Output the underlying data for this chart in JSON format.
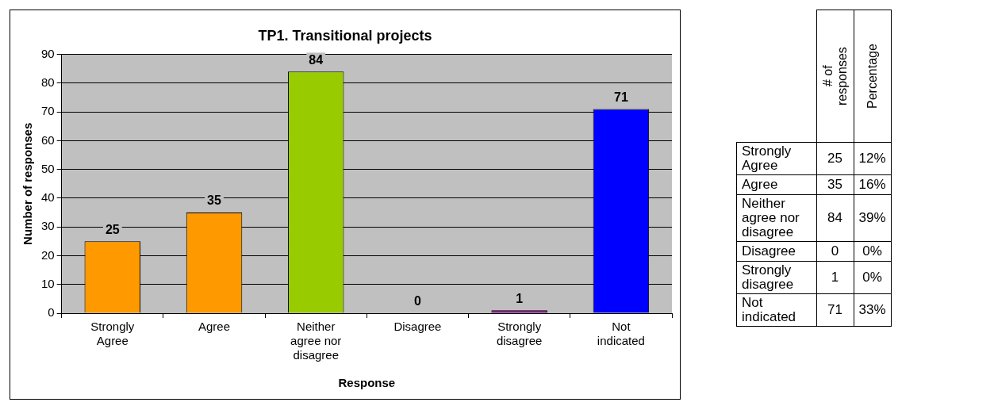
{
  "chart_data": [
    {
      "type": "bar",
      "title": "TP1. Transitional projects",
      "xlabel": "Response",
      "ylabel": "Number of responses",
      "categories": [
        "Strongly Agree",
        "Agree",
        "Neither agree nor disagree",
        "Disagree",
        "Strongly disagree",
        "Not indicated"
      ],
      "values": [
        25,
        35,
        84,
        0,
        1,
        71
      ],
      "colors": [
        "#ff9900",
        "#ff9900",
        "#99cc00",
        "#800080",
        "#800080",
        "#0000ff"
      ],
      "ylim": [
        0,
        90
      ],
      "yticks": [
        0,
        10,
        20,
        30,
        40,
        50,
        60,
        70,
        80,
        90
      ],
      "grid": "y",
      "legend": false,
      "data_labels": true
    },
    {
      "type": "other",
      "categories": [
        "# of responses",
        "Percentage"
      ],
      "y_categories": [
        "Strongly Agree",
        "Agree",
        "Neither agree nor disagree",
        "Disagree",
        "Strongly disagree",
        "Not indicated"
      ],
      "cell_labels": [
        [
          "25",
          "12%"
        ],
        [
          "35",
          "16%"
        ],
        [
          "84",
          "39%"
        ],
        [
          "0",
          "0%"
        ],
        [
          "1",
          "0%"
        ],
        [
          "71",
          "33%"
        ]
      ]
    }
  ]
}
